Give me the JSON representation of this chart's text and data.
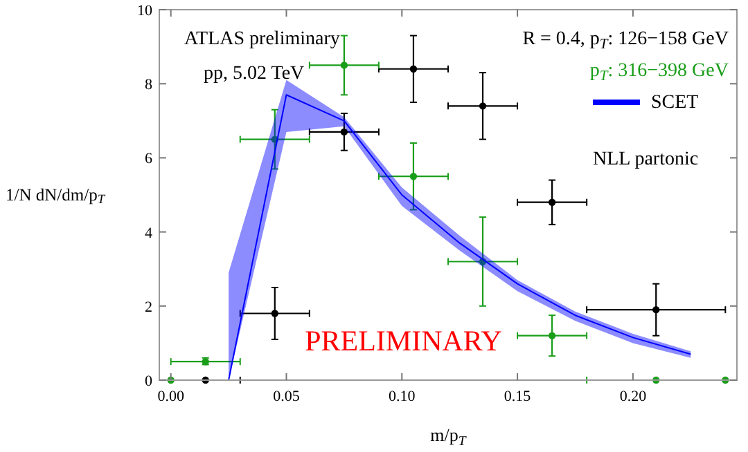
{
  "chart_data": {
    "type": "scatter",
    "xlabel": "m/p$_{T}$",
    "ylabel": "1/N dN/dm/p$_{T}$",
    "xlim": [
      -0.005,
      0.245
    ],
    "ylim": [
      0,
      10
    ],
    "xticks": [
      {
        "value": 0,
        "label": "0.00"
      },
      {
        "value": 0.05,
        "label": "0.05"
      },
      {
        "value": 0.1,
        "label": "0.10"
      },
      {
        "value": 0.15,
        "label": "0.15"
      },
      {
        "value": 0.2,
        "label": "0.20"
      }
    ],
    "yticks": [
      0,
      2,
      4,
      6,
      8,
      10
    ],
    "grid": false,
    "marker": "circle",
    "legend": "top right",
    "annotations": [
      "ATLAS preliminary",
      "pp, 5.02 TeV",
      "NLL partonic",
      "PRELIMINARY"
    ],
    "series": [
      {
        "name": "R = 0.4, p$_{T}$: 126−158 GeV",
        "color": "#000000",
        "x": [
          0.015,
          0.045,
          0.075,
          0.105,
          0.135,
          0.165,
          0.21
        ],
        "values": [
          0,
          1.8,
          6.7,
          8.4,
          7.4,
          4.8,
          1.9
        ],
        "errors": [
          null,
          [
            1.1,
            2.5
          ],
          [
            6.2,
            7.2
          ],
          [
            7.5,
            9.3
          ],
          [
            6.5,
            8.3
          ],
          [
            4.2,
            5.4
          ],
          [
            1.2,
            2.6
          ]
        ],
        "xerrors": [
          [
            0,
            0.03
          ],
          [
            0.03,
            0.06
          ],
          [
            0.06,
            0.09
          ],
          [
            0.09,
            0.12
          ],
          [
            0.12,
            0.15
          ],
          [
            0.15,
            0.18
          ],
          [
            0.18,
            0.24
          ]
        ]
      },
      {
        "name": "p$_{T}$: 316−398 GeV",
        "color": "#1a9e1a",
        "x": [
          0,
          0.015,
          0.045,
          0.075,
          0.105,
          0.135,
          0.165,
          0.21,
          0.24
        ],
        "values": [
          0,
          0.5,
          6.5,
          8.5,
          5.5,
          3.2,
          1.2,
          0,
          0
        ],
        "errors": [
          null,
          [
            0.42,
            0.6
          ],
          [
            5.7,
            7.3
          ],
          [
            7.7,
            9.3
          ],
          [
            4.6,
            6.4
          ],
          [
            2.0,
            4.4
          ],
          [
            0.65,
            1.75
          ],
          null,
          null
        ],
        "xerrors": [
          null,
          [
            0,
            0.03
          ],
          [
            0.03,
            0.06
          ],
          [
            0.06,
            0.09
          ],
          [
            0.09,
            0.12
          ],
          [
            0.12,
            0.15
          ],
          [
            0.15,
            0.18
          ],
          [
            0.18,
            0.24
          ],
          null
        ]
      },
      {
        "name": "SCET",
        "type": "line",
        "color": "#0000ff",
        "marker": "none",
        "x": [
          0.025,
          0.05,
          0.075,
          0.1,
          0.125,
          0.15,
          0.175,
          0.2,
          0.225
        ],
        "values": [
          0,
          7.7,
          7.0,
          5.0,
          3.7,
          2.6,
          1.75,
          1.15,
          0.7
        ],
        "lower": [
          0,
          6.7,
          6.85,
          4.7,
          3.5,
          2.4,
          1.6,
          1.0,
          0.6
        ],
        "upper": [
          2.9,
          8.1,
          7.1,
          5.2,
          3.9,
          2.7,
          1.85,
          1.25,
          0.78
        ]
      }
    ]
  }
}
